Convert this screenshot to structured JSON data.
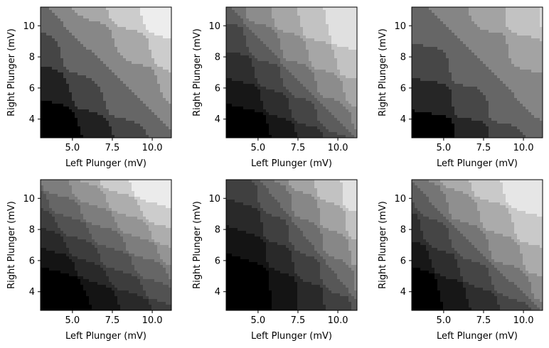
{
  "chart_data": [
    {
      "type": "heatmap",
      "xlabel": "Left Plunger (mV)",
      "ylabel": "Right Plunger (mV)",
      "xlim": [
        3.0,
        11.2
      ],
      "ylim": [
        2.8,
        11.2
      ],
      "xticks": [
        "5.0",
        "7.5",
        "10.0"
      ],
      "yticks": [
        "4",
        "6",
        "8",
        "10"
      ],
      "xtick_values": [
        5.0,
        7.5,
        10.0
      ],
      "ytick_values": [
        4,
        6,
        8,
        10
      ],
      "colormap": "gray",
      "n_levels": 8,
      "region_grid": "diagonal charge-stability regions, brightness increasing toward upper-right",
      "cx": [
        4.4,
        6.3,
        8.4,
        10.4
      ],
      "cy": [
        4.1,
        6.2,
        8.3,
        10.3
      ],
      "fx": [
        1.0,
        1.0,
        1.0,
        1.0
      ],
      "fy": [
        1.0,
        1.0,
        1.0,
        1.0
      ],
      "slope_x": -0.28,
      "slope_y": -0.28,
      "level_values": [
        0.0,
        0.13,
        0.27,
        0.4,
        0.53,
        0.66,
        0.8,
        0.93
      ]
    },
    {
      "type": "heatmap",
      "xlabel": "Left Plunger (mV)",
      "ylabel": "Right Plunger (mV)",
      "xlim": [
        3.0,
        11.2
      ],
      "ylim": [
        2.8,
        11.2
      ],
      "xticks": [
        "5.0",
        "7.5",
        "10.0"
      ],
      "yticks": [
        "4",
        "6",
        "8",
        "10"
      ],
      "xtick_values": [
        5.0,
        7.5,
        10.0
      ],
      "ytick_values": [
        4,
        6,
        8,
        10
      ],
      "colormap": "gray",
      "n_levels": 10,
      "cx": [
        4.9,
        6.6,
        8.3,
        10.0
      ],
      "cy": [
        4.0,
        5.7,
        7.5,
        9.4
      ],
      "fx": [
        0.8,
        0.8,
        0.8,
        0.8
      ],
      "fy": [
        0.9,
        0.9,
        0.9,
        0.9
      ],
      "slope_x": -0.22,
      "slope_y": -0.25,
      "level_values": [
        0.0,
        0.09,
        0.18,
        0.27,
        0.36,
        0.45,
        0.55,
        0.65,
        0.76,
        0.88
      ]
    },
    {
      "type": "heatmap",
      "xlabel": "Left Plunger (mV)",
      "ylabel": "Right Plunger (mV)",
      "xlim": [
        3.0,
        11.2
      ],
      "ylim": [
        2.8,
        11.2
      ],
      "xticks": [
        "5.0",
        "7.5",
        "10.0"
      ],
      "yticks": [
        "4",
        "6",
        "8",
        "10"
      ],
      "xtick_values": [
        5.0,
        7.5,
        10.0
      ],
      "ytick_values": [
        4,
        6,
        8,
        10
      ],
      "colormap": "gray",
      "n_levels": 8,
      "cx": [
        5.2,
        7.3,
        9.4,
        11.5
      ],
      "cy": [
        3.8,
        5.8,
        7.9,
        10.0
      ],
      "fx": [
        1.0,
        1.0,
        1.0,
        1.0
      ],
      "fy": [
        1.0,
        1.0,
        1.0,
        1.0
      ],
      "slope_x": -0.12,
      "slope_y": -0.18,
      "level_values": [
        0.0,
        0.15,
        0.28,
        0.4,
        0.52,
        0.64,
        0.76,
        0.86
      ]
    },
    {
      "type": "heatmap",
      "xlabel": "Left Plunger (mV)",
      "ylabel": "Right Plunger (mV)",
      "xlim": [
        3.0,
        11.2
      ],
      "ylim": [
        2.8,
        11.2
      ],
      "xticks": [
        "5.0",
        "7.5",
        "10.0"
      ],
      "yticks": [
        "4",
        "6",
        "8",
        "10"
      ],
      "xtick_values": [
        5.0,
        7.5,
        10.0
      ],
      "ytick_values": [
        4,
        6,
        8,
        10
      ],
      "colormap": "gray",
      "n_levels": 11,
      "cx": [
        4.6,
        6.4,
        8.3,
        10.2
      ],
      "cy": [
        4.4,
        5.6,
        6.9,
        8.1,
        9.3,
        10.6
      ],
      "fx": [
        0.9,
        0.9,
        0.9,
        0.9
      ],
      "fy": [
        0.6,
        0.6,
        0.6,
        0.6,
        0.6,
        0.6
      ],
      "slope_x": -0.4,
      "slope_y": -0.3,
      "level_values": [
        0.0,
        0.08,
        0.16,
        0.24,
        0.32,
        0.4,
        0.49,
        0.58,
        0.68,
        0.8,
        0.92
      ]
    },
    {
      "type": "heatmap",
      "xlabel": "Left Plunger (mV)",
      "ylabel": "Right Plunger (mV)",
      "xlim": [
        3.0,
        11.2
      ],
      "ylim": [
        2.8,
        11.2
      ],
      "xticks": [
        "5.0",
        "7.5",
        "10.0"
      ],
      "yticks": [
        "4",
        "6",
        "8",
        "10"
      ],
      "xtick_values": [
        5.0,
        7.5,
        10.0
      ],
      "ytick_values": [
        4,
        6,
        8,
        10
      ],
      "colormap": "gray",
      "n_levels": 10,
      "cx": [
        5.5,
        7.2,
        8.9,
        10.6
      ],
      "cy": [
        5.1,
        6.9,
        8.7,
        10.5
      ],
      "fx": [
        0.85,
        0.85,
        0.85,
        0.85
      ],
      "fy": [
        0.9,
        0.9,
        0.9,
        0.9
      ],
      "slope_x": -0.1,
      "slope_y": -0.35,
      "level_values": [
        0.0,
        0.08,
        0.16,
        0.25,
        0.34,
        0.43,
        0.53,
        0.64,
        0.76,
        0.88
      ]
    },
    {
      "type": "heatmap",
      "xlabel": "Left Plunger (mV)",
      "ylabel": "Right Plunger (mV)",
      "xlim": [
        3.0,
        11.2
      ],
      "ylim": [
        2.8,
        11.2
      ],
      "xticks": [
        "5.0",
        "7.5",
        "10.0"
      ],
      "yticks": [
        "4",
        "6",
        "8",
        "10"
      ],
      "xtick_values": [
        5.0,
        7.5,
        10.0
      ],
      "ytick_values": [
        4,
        6,
        8,
        10
      ],
      "colormap": "gray",
      "n_levels": 10,
      "cx": [
        4.0,
        5.7,
        7.6,
        9.6
      ],
      "cy": [
        4.4,
        6.1,
        8.0,
        10.0
      ],
      "fx": [
        0.85,
        0.85,
        0.85,
        0.85
      ],
      "fy": [
        0.85,
        0.85,
        0.85,
        0.85
      ],
      "slope_x": -0.25,
      "slope_y": -0.3,
      "level_values": [
        0.0,
        0.09,
        0.18,
        0.27,
        0.36,
        0.46,
        0.56,
        0.67,
        0.79,
        0.9
      ]
    }
  ]
}
